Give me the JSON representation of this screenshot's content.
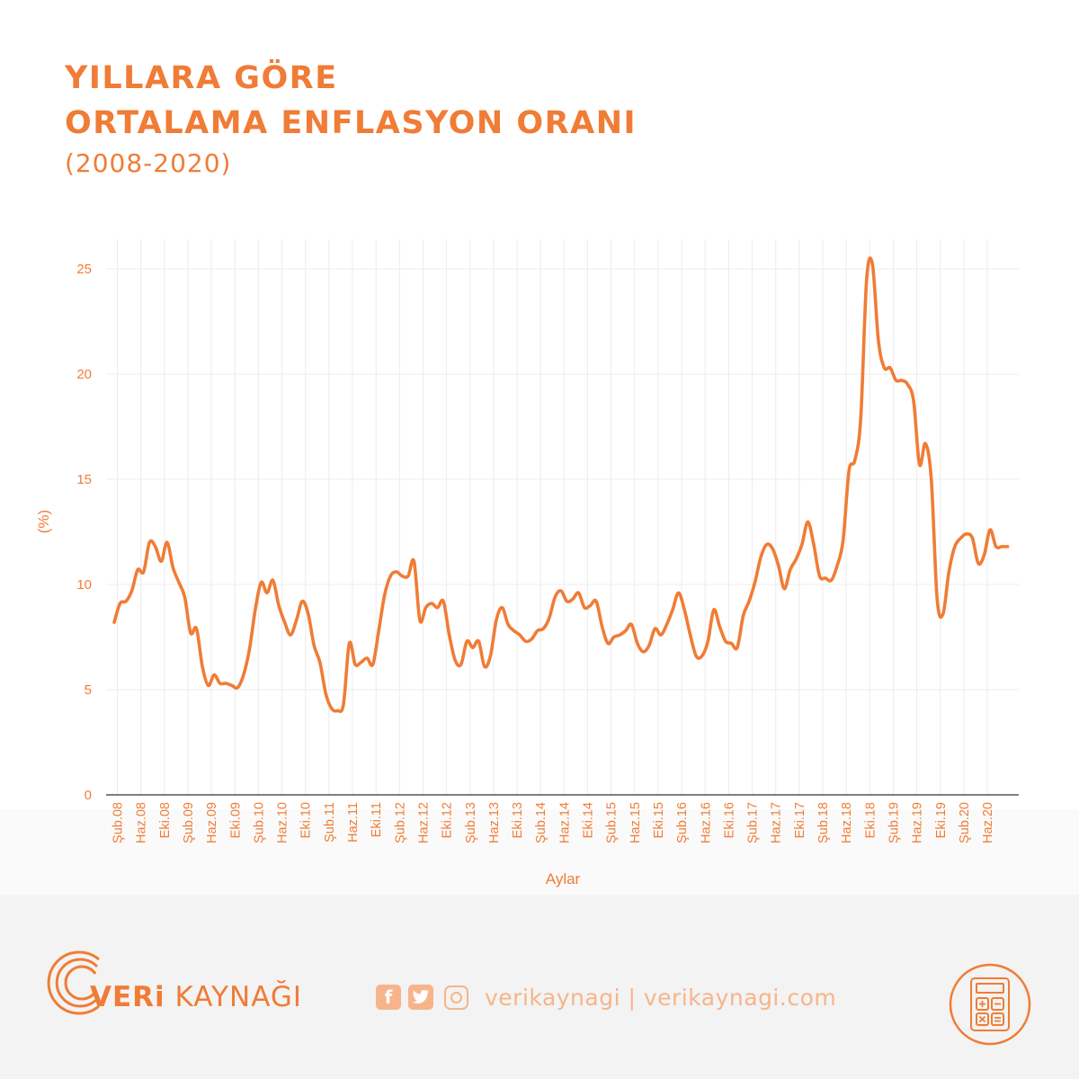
{
  "header": {
    "title_line1": "YILLARA GÖRE",
    "title_line2": "ORTALAMA ENFLASYON ORANI",
    "subtitle": "(2008-2020)"
  },
  "colors": {
    "accent": "#f07c36",
    "line": "#f07c36",
    "grid": "#ececec",
    "footer_bg": "#f3f3f3",
    "social": "#f7b48a"
  },
  "chart_data": {
    "type": "line",
    "title": "YILLARA GÖRE ORTALAMA ENFLASYON ORANI",
    "subtitle": "(2008-2020)",
    "xlabel": "Aylar",
    "ylabel": "(%)",
    "ylim": [
      0,
      25
    ],
    "yticks": [
      0,
      5,
      10,
      15,
      20,
      25
    ],
    "grid": true,
    "x_tick_labels": [
      "Şub.08",
      "Haz.08",
      "Eki.08",
      "Şub.09",
      "Haz.09",
      "Eki.09",
      "Şub.10",
      "Haz.10",
      "Eki.10",
      "Şub.11",
      "Haz.11",
      "Eki.11",
      "Şub.12",
      "Haz.12",
      "Eki.12",
      "Şub.13",
      "Haz.13",
      "Eki.13",
      "Şub.14",
      "Haz.14",
      "Eki.14",
      "Şub.15",
      "Haz.15",
      "Eki.15",
      "Şub.16",
      "Haz.16",
      "Eki.16",
      "Şub.17",
      "Haz.17",
      "Eki.17",
      "Şub.18",
      "Haz.18",
      "Eki.18",
      "Şub.19",
      "Haz.19",
      "Eki.19",
      "Şub.20",
      "Haz.20"
    ],
    "series": [
      {
        "start": "Şub.08",
        "values": [
          8.2,
          9.1,
          9.2,
          9.7,
          10.7,
          10.6,
          12.0,
          11.8,
          11.1,
          12.0,
          10.8,
          10.1,
          9.4,
          7.7,
          7.9,
          6.1,
          5.2,
          5.7,
          5.3,
          5.3,
          5.2,
          5.1,
          5.7,
          6.9,
          8.8,
          10.1,
          9.6,
          10.2,
          9.0,
          8.2,
          7.6,
          8.3,
          9.2,
          8.6,
          7.1,
          6.3,
          4.8,
          4.1,
          4.0,
          4.3,
          7.2,
          6.2,
          6.3,
          6.5,
          6.2,
          7.8,
          9.5,
          10.4,
          10.6,
          10.4,
          10.4,
          11.1,
          8.3,
          8.9,
          9.1,
          8.9,
          9.2,
          7.6,
          6.4,
          6.2,
          7.3,
          7.0,
          7.3,
          6.1,
          6.6,
          8.3,
          8.9,
          8.1,
          7.8,
          7.6,
          7.3,
          7.4,
          7.8,
          7.9,
          8.4,
          9.4,
          9.7,
          9.2,
          9.3,
          9.6,
          8.9,
          9.0,
          9.2,
          8.0,
          7.2,
          7.5,
          7.6,
          7.8,
          8.1,
          7.2,
          6.8,
          7.1,
          7.9,
          7.6,
          8.1,
          8.8,
          9.6,
          8.8,
          7.6,
          6.6,
          6.6,
          7.3,
          8.8,
          8.0,
          7.3,
          7.2,
          7.0,
          8.5,
          9.2,
          10.1,
          11.3,
          11.9,
          11.7,
          10.9,
          9.8,
          10.7,
          11.2,
          11.9,
          12.98,
          11.9,
          10.4,
          10.3,
          10.2,
          10.9,
          12.1,
          15.4,
          15.9,
          17.9,
          24.5,
          25.2,
          21.6,
          20.3,
          20.3,
          19.7,
          19.7,
          19.5,
          18.7,
          15.7,
          16.7,
          15.0,
          9.3,
          8.6,
          10.6,
          11.8,
          12.2,
          12.4,
          12.2,
          11.0,
          11.4,
          12.6,
          11.8,
          11.8,
          11.8
        ]
      }
    ]
  },
  "footer": {
    "brand_bold": "VERi",
    "brand_rest": " KAYNAĞI",
    "social_text": "verikaynagi | verikaynagi.com",
    "facebook_icon": "f",
    "twitter_icon": "twitter-bird"
  }
}
